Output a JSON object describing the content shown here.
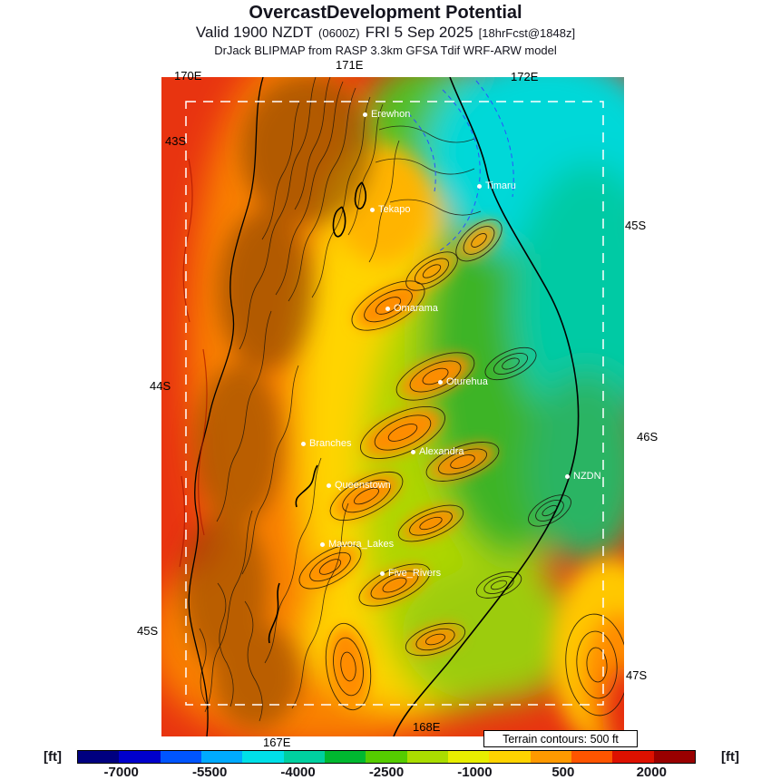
{
  "header": {
    "title": "OvercastDevelopment Potential",
    "valid_line": {
      "part1": "Valid 1900 NZDT",
      "small1": "(0600Z)",
      "part2": "FRI 5 Sep 2025",
      "small2": "[18hrFcst@1848z]"
    },
    "model_line": "DrJack BLIPMAP from RASP 3.3km GFSA Tdif WRF-ARW model"
  },
  "map": {
    "graticule_labels": [
      {
        "text": "170E"
      },
      {
        "text": "171E"
      },
      {
        "text": "172E"
      },
      {
        "text": "43S"
      },
      {
        "text": "44S"
      },
      {
        "text": "45S"
      },
      {
        "text": "45S"
      },
      {
        "text": "46S"
      },
      {
        "text": "47S"
      },
      {
        "text": "167E"
      },
      {
        "text": "168E"
      }
    ],
    "cities": [
      {
        "name": "Erewhon"
      },
      {
        "name": "Timaru"
      },
      {
        "name": "Tekapo"
      },
      {
        "name": "Omarama"
      },
      {
        "name": "Oturehua"
      },
      {
        "name": "Branches"
      },
      {
        "name": "Alexandra"
      },
      {
        "name": "NZDN"
      },
      {
        "name": "Queenstown"
      },
      {
        "name": "Mavora_Lakes"
      },
      {
        "name": "Five_Rivers"
      }
    ],
    "terrain_note": "Terrain contours: 500 ft"
  },
  "colorbar": {
    "unit_left": "[ft]",
    "unit_right": "[ft]",
    "ticks": [
      "-7000",
      "-5500",
      "-4000",
      "-2500",
      "-1000",
      "500",
      "2000"
    ],
    "colors": [
      "#000080",
      "#0000cc",
      "#0055ff",
      "#00aaff",
      "#00e0e8",
      "#00d0a0",
      "#00b830",
      "#55cc00",
      "#aadd00",
      "#e8ee00",
      "#ffd400",
      "#ff9900",
      "#ff5500",
      "#dd1100",
      "#990000"
    ]
  }
}
